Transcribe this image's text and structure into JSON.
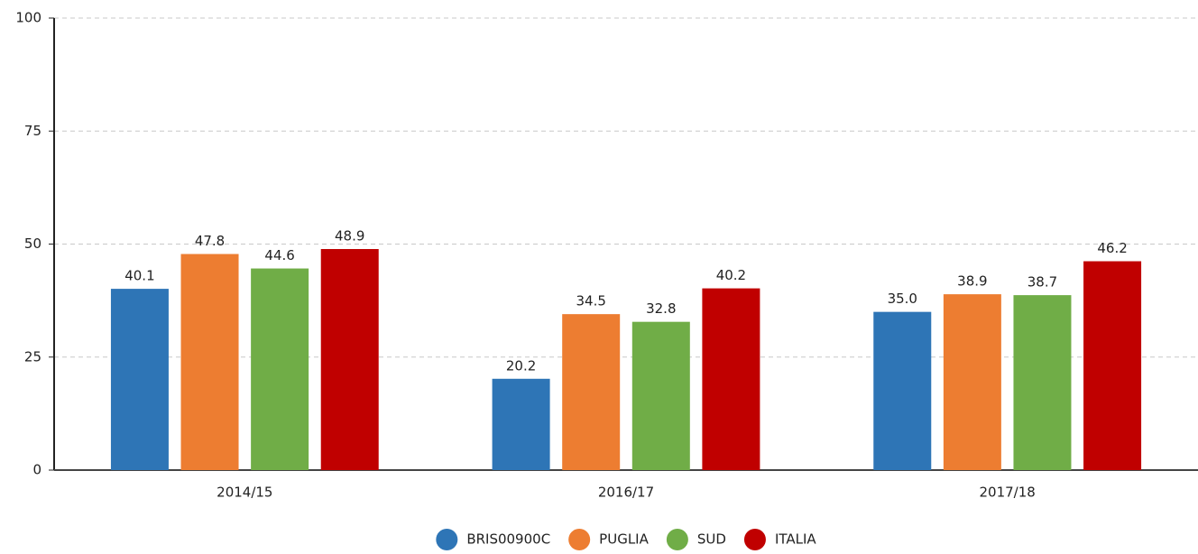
{
  "chart_data": {
    "type": "bar",
    "categories": [
      "2014/15",
      "2016/17",
      "2017/18"
    ],
    "series": [
      {
        "name": "BRIS00900C",
        "color": "#2e75b6",
        "values": [
          40.1,
          20.2,
          35.0
        ],
        "value_labels": [
          "40.1",
          "20.2",
          "35.0"
        ]
      },
      {
        "name": "PUGLIA",
        "color": "#ed7d31",
        "values": [
          47.8,
          34.5,
          38.9
        ],
        "value_labels": [
          "47.8",
          "34.5",
          "38.9"
        ]
      },
      {
        "name": "SUD",
        "color": "#70ad47",
        "values": [
          44.6,
          32.8,
          38.7
        ],
        "value_labels": [
          "44.6",
          "32.8",
          "38.7"
        ]
      },
      {
        "name": "ITALIA",
        "color": "#c00000",
        "values": [
          48.9,
          40.2,
          46.2
        ],
        "value_labels": [
          "48.9",
          "40.2",
          "46.2"
        ]
      }
    ],
    "ylim": [
      0,
      100
    ],
    "yticks": [
      0,
      25,
      50,
      75,
      100
    ],
    "grid": true,
    "legend": "bottom"
  }
}
